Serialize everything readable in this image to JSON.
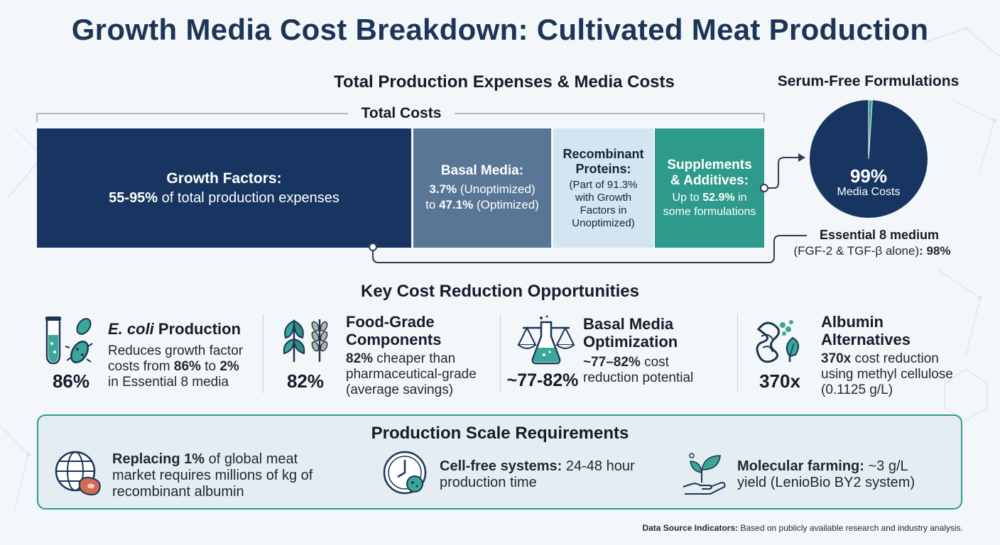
{
  "title": "Growth Media Cost Breakdown: Cultivated Meat Production",
  "expenses": {
    "heading": "Total Production Expenses & Media Costs",
    "total_label": "Total Costs",
    "segments": [
      {
        "title": "Growth Factors:",
        "value": "55-95%",
        "rest": " of total production expenses",
        "color": "#173560"
      },
      {
        "title": "Basal Media:",
        "line1_value": "3.7%",
        "line1_rest": " (Unoptimized)",
        "line2_pre": "to ",
        "line2_value": "47.1%",
        "line2_rest": " (Optimized)",
        "color": "#5a7696"
      },
      {
        "title_line1": "Recombinant",
        "title_line2": "Proteins:",
        "note_lines": [
          "(Part of 91.3%",
          "with Growth",
          "Factors in",
          "Unoptimized)"
        ],
        "color": "#d2e5f1"
      },
      {
        "title_line1": "Supplements",
        "title_line2": "& Additives:",
        "line1_pre": "Up to ",
        "line1_value": "52.9%",
        "line1_rest": " in",
        "line2": "some formulations",
        "color": "#2e9a8c"
      }
    ]
  },
  "serum_free": {
    "heading": "Serum-Free Formulations",
    "pie_value": "99%",
    "pie_label": "Media Costs",
    "pie_share": 0.99,
    "e8_title": "Essential 8 medium",
    "e8_detail_pre": "(FGF-2 & TGF-β alone)",
    "e8_detail_value": ": 98%",
    "colors": {
      "pie": "#173560",
      "slice": "#2e9a8c"
    }
  },
  "opportunities": {
    "heading": "Key Cost Reduction Opportunities",
    "items": [
      {
        "value": "86%",
        "title_italic": "E. coli",
        "title_rest": " Production",
        "desc_lines": [
          "Reduces growth factor",
          "costs from ",
          "in Essential 8 media"
        ],
        "v1": "86%",
        "mid": " to ",
        "v2": "2%"
      },
      {
        "value": "82%",
        "title_lines": [
          "Food-Grade",
          "Components"
        ],
        "desc_value": "82%",
        "desc_rest": " cheaper than",
        "desc_lines": [
          "pharmaceutical-grade",
          "(average savings)"
        ]
      },
      {
        "value": "~77-82%",
        "title_lines": [
          "Basal Media",
          "Optimization"
        ],
        "desc_value": "~77–82%",
        "desc_rest": " cost",
        "desc_lines": [
          "reduction potential"
        ]
      },
      {
        "value": "370x",
        "title_lines": [
          "Albumin",
          "Alternatives"
        ],
        "desc_value": "370x",
        "desc_rest": " cost reduction",
        "desc_lines": [
          "using methyl cellulose",
          "(0.1125 g/L)"
        ]
      }
    ]
  },
  "scale": {
    "heading": "Production Scale Requirements",
    "items": [
      {
        "bold": "Replacing 1%",
        "rest": " of global meat",
        "lines": [
          "market requires millions of kg of",
          "recombinant albumin"
        ]
      },
      {
        "bold": "Cell-free systems:",
        "rest": " 24-48 hour",
        "lines": [
          "production time"
        ]
      },
      {
        "bold": "Molecular farming:",
        "rest": " ~3 g/L",
        "lines": [
          "yield (LenioBio BY2 system)"
        ]
      }
    ]
  },
  "footer": {
    "bold": "Data Source Indicators:",
    "rest": " Based on publicly available research and industry analysis."
  }
}
